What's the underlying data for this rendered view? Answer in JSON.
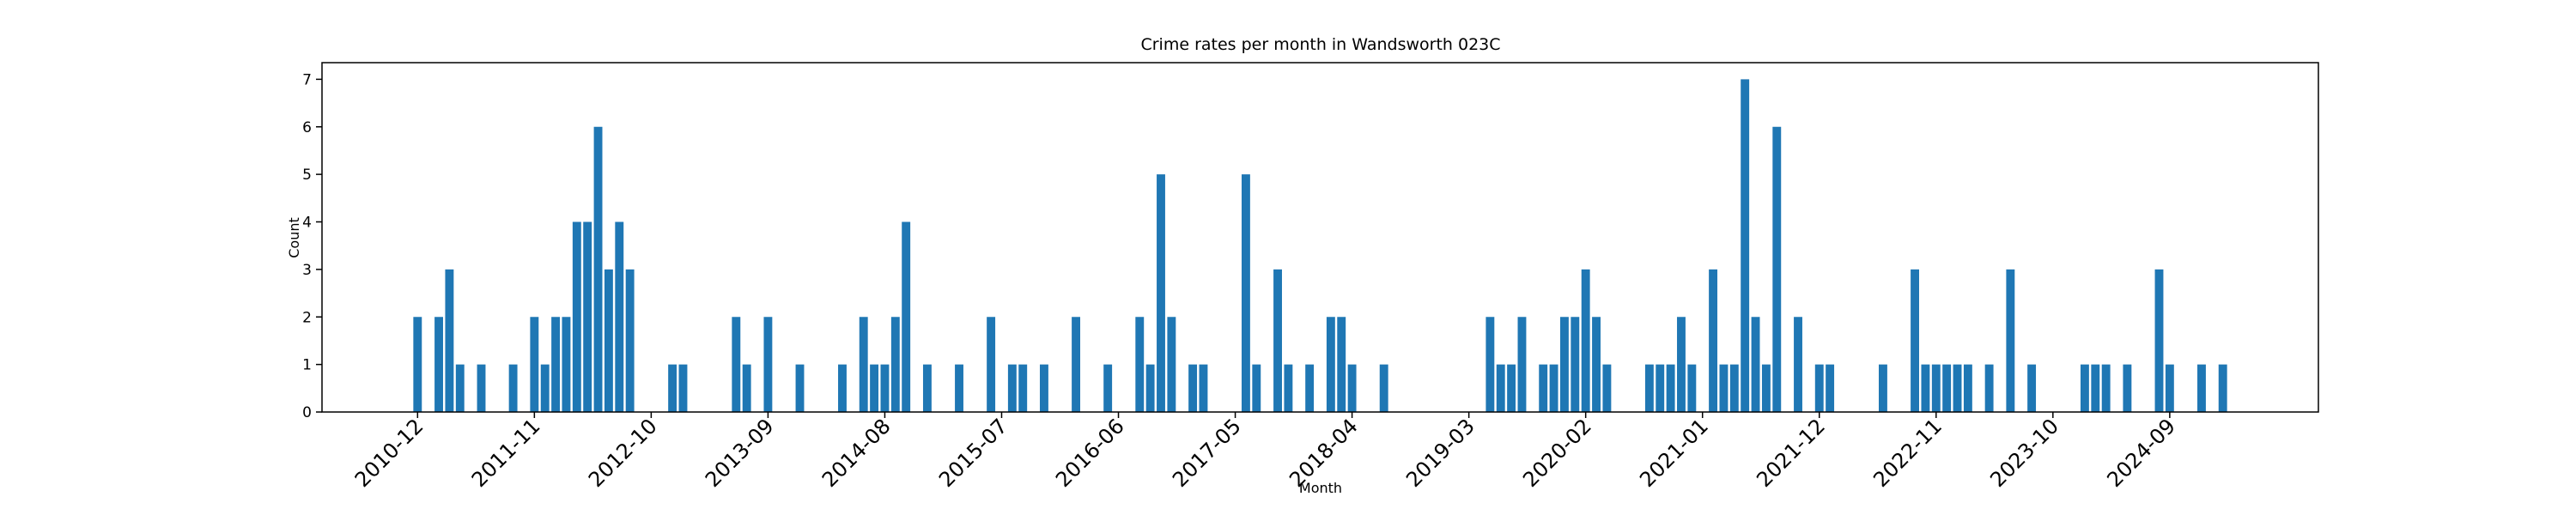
{
  "chart_data": {
    "type": "bar",
    "title": "Crime rates per month in Wandsworth 023C",
    "x_label": "Month",
    "y_label": "Count",
    "color": "#1f77b4",
    "x": [
      "2010-12",
      "2011-02",
      "2011-03",
      "2011-04",
      "2011-06",
      "2011-09",
      "2011-11",
      "2011-12",
      "2012-01",
      "2012-02",
      "2012-03",
      "2012-04",
      "2012-05",
      "2012-06",
      "2012-07",
      "2012-08",
      "2012-12",
      "2013-01",
      "2013-06",
      "2013-07",
      "2013-09",
      "2013-12",
      "2014-04",
      "2014-06",
      "2014-07",
      "2014-08",
      "2014-09",
      "2014-10",
      "2014-12",
      "2015-03",
      "2015-06",
      "2015-08",
      "2015-09",
      "2015-11",
      "2016-02",
      "2016-05",
      "2016-08",
      "2016-09",
      "2016-10",
      "2016-11",
      "2017-01",
      "2017-02",
      "2017-06",
      "2017-07",
      "2017-09",
      "2017-10",
      "2017-12",
      "2018-02",
      "2018-03",
      "2018-04",
      "2018-07",
      "2019-05",
      "2019-06",
      "2019-07",
      "2019-08",
      "2019-10",
      "2019-11",
      "2019-12",
      "2020-01",
      "2020-02",
      "2020-03",
      "2020-04",
      "2020-08",
      "2020-09",
      "2020-10",
      "2020-11",
      "2020-12",
      "2021-02",
      "2021-03",
      "2021-04",
      "2021-05",
      "2021-06",
      "2021-07",
      "2021-08",
      "2021-10",
      "2021-12",
      "2022-01",
      "2022-06",
      "2022-09",
      "2022-10",
      "2022-11",
      "2022-12",
      "2023-01",
      "2023-02",
      "2023-04",
      "2023-06",
      "2023-08",
      "2024-01",
      "2024-02",
      "2024-03",
      "2024-05",
      "2024-08",
      "2024-09",
      "2024-12",
      "2025-02"
    ],
    "values": [
      2,
      2,
      3,
      1,
      1,
      1,
      2,
      1,
      2,
      2,
      4,
      4,
      6,
      3,
      4,
      3,
      1,
      1,
      2,
      1,
      2,
      1,
      1,
      2,
      1,
      1,
      2,
      4,
      1,
      1,
      2,
      1,
      1,
      1,
      2,
      1,
      2,
      1,
      5,
      2,
      1,
      1,
      5,
      1,
      3,
      1,
      1,
      2,
      2,
      1,
      1,
      2,
      1,
      1,
      2,
      1,
      1,
      2,
      2,
      3,
      2,
      1,
      1,
      1,
      1,
      2,
      1,
      3,
      1,
      1,
      7,
      2,
      1,
      6,
      2,
      1,
      1,
      1,
      3,
      1,
      1,
      1,
      1,
      1,
      1,
      3,
      1,
      1,
      1,
      1,
      1,
      3,
      1,
      1,
      1
    ],
    "xlim": [
      "2010-03",
      "2025-11"
    ],
    "xticks": [
      "2010-12",
      "2011-11",
      "2012-10",
      "2013-09",
      "2014-08",
      "2015-07",
      "2016-06",
      "2017-05",
      "2018-04",
      "2019-03",
      "2020-02",
      "2021-01",
      "2021-12",
      "2022-11",
      "2023-10",
      "2024-09"
    ],
    "ylim": [
      0,
      7.35
    ],
    "yticks": [
      0,
      1,
      2,
      3,
      4,
      5,
      6,
      7
    ]
  }
}
